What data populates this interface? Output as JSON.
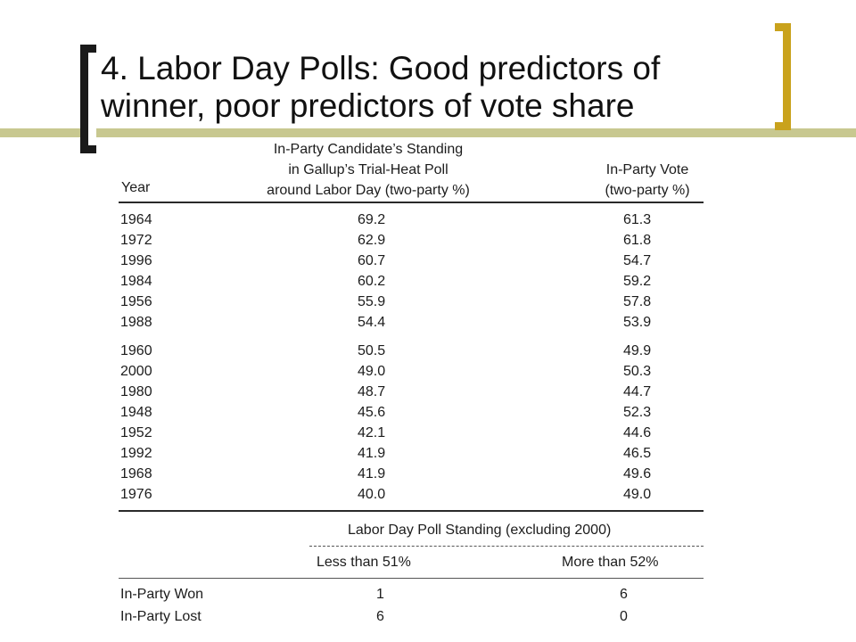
{
  "slide": {
    "title_line1": "4. Labor Day Polls: Good predictors of",
    "title_line2": "winner, poor predictors of vote share"
  },
  "table": {
    "headers": {
      "year": "Year",
      "poll_line1": "In-Party Candidate’s Standing",
      "poll_line2": "in Gallup’s Trial-Heat Poll",
      "poll_line3": "around Labor Day (two-party %)",
      "vote_line1": "In-Party Vote",
      "vote_line2": "(two-party %)"
    },
    "group1": [
      {
        "year": "1964",
        "poll": "69.2",
        "vote": "61.3"
      },
      {
        "year": "1972",
        "poll": "62.9",
        "vote": "61.8"
      },
      {
        "year": "1996",
        "poll": "60.7",
        "vote": "54.7"
      },
      {
        "year": "1984",
        "poll": "60.2",
        "vote": "59.2"
      },
      {
        "year": "1956",
        "poll": "55.9",
        "vote": "57.8"
      },
      {
        "year": "1988",
        "poll": "54.4",
        "vote": "53.9"
      }
    ],
    "group2": [
      {
        "year": "1960",
        "poll": "50.5",
        "vote": "49.9"
      },
      {
        "year": "2000",
        "poll": "49.0",
        "vote": "50.3"
      },
      {
        "year": "1980",
        "poll": "48.7",
        "vote": "44.7"
      },
      {
        "year": "1948",
        "poll": "45.6",
        "vote": "52.3"
      },
      {
        "year": "1952",
        "poll": "42.1",
        "vote": "44.6"
      },
      {
        "year": "1992",
        "poll": "41.9",
        "vote": "46.5"
      },
      {
        "year": "1968",
        "poll": "41.9",
        "vote": "49.6"
      },
      {
        "year": "1976",
        "poll": "40.0",
        "vote": "49.0"
      }
    ]
  },
  "summary": {
    "span_header": "Labor Day Poll Standing (excluding 2000)",
    "col1": "Less than 51%",
    "col2": "More than 52%",
    "rows": [
      {
        "label": "In-Party Won",
        "a": "1",
        "b": "6"
      },
      {
        "label": "In-Party Lost",
        "a": "6",
        "b": "0"
      }
    ]
  },
  "colors": {
    "accent_bar": "#c8c890",
    "left_bracket": "#1a1a1a",
    "right_bracket": "#c9a21c"
  }
}
